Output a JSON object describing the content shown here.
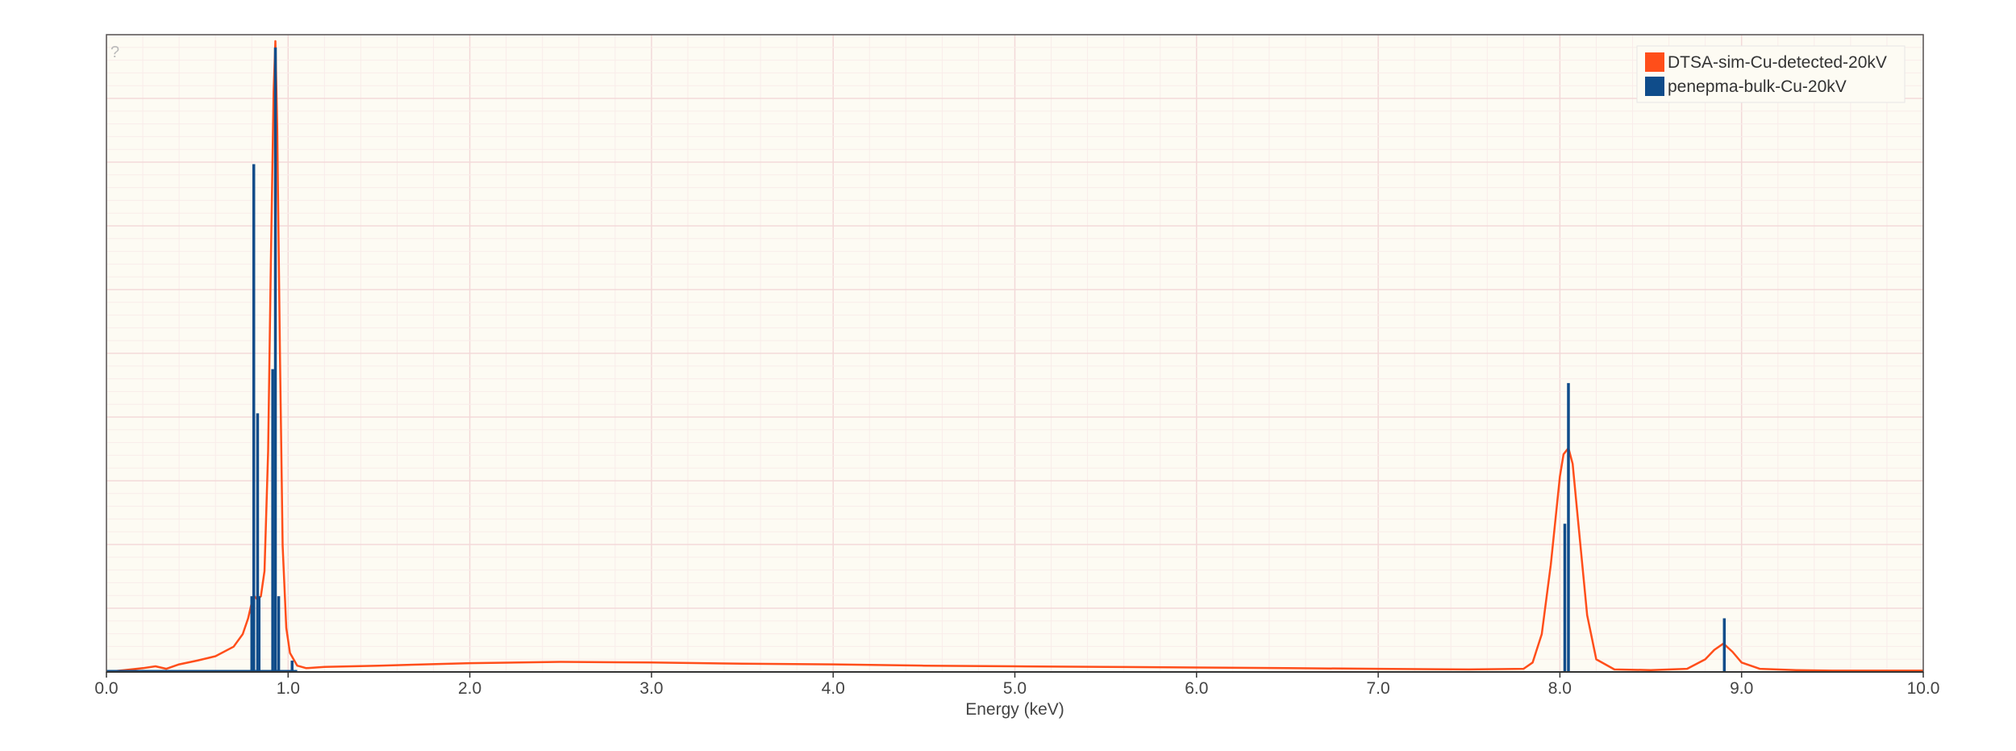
{
  "chart_data": {
    "type": "line",
    "title": "",
    "xlabel": "Energy (keV)",
    "ylabel": "",
    "xlim": [
      0,
      10
    ],
    "ylim": [
      0,
      1
    ],
    "x_ticks": [
      "0.0",
      "1.0",
      "2.0",
      "3.0",
      "4.0",
      "5.0",
      "6.0",
      "7.0",
      "8.0",
      "9.0",
      "10.0"
    ],
    "grid": true,
    "legend_position": "top-right",
    "help_mark": "?",
    "colors": {
      "plot_background": "#fdfbf3",
      "grid_major": "#f3d9d9",
      "grid_minor": "#f9ecea",
      "frame": "#555555"
    },
    "series": [
      {
        "name": "DTSA-sim-Cu-detected-20kV",
        "color": "#ff4e1a",
        "style": "line",
        "x": [
          0.0,
          0.1,
          0.2,
          0.27,
          0.33,
          0.4,
          0.5,
          0.6,
          0.7,
          0.75,
          0.78,
          0.8,
          0.815,
          0.83,
          0.85,
          0.87,
          0.89,
          0.905,
          0.92,
          0.93,
          0.94,
          0.955,
          0.97,
          0.99,
          1.01,
          1.05,
          1.1,
          1.2,
          1.5,
          2.0,
          2.5,
          3.0,
          3.5,
          4.0,
          4.5,
          5.0,
          5.5,
          6.0,
          6.5,
          7.0,
          7.5,
          7.8,
          7.85,
          7.9,
          7.95,
          8.0,
          8.02,
          8.047,
          8.07,
          8.1,
          8.15,
          8.2,
          8.3,
          8.5,
          8.7,
          8.8,
          8.85,
          8.9,
          8.95,
          9.0,
          9.1,
          9.3,
          9.5,
          10.0
        ],
        "values": [
          0.0,
          0.003,
          0.006,
          0.009,
          0.005,
          0.012,
          0.018,
          0.025,
          0.04,
          0.06,
          0.085,
          0.11,
          0.12,
          0.115,
          0.12,
          0.16,
          0.35,
          0.65,
          0.92,
          1.0,
          0.86,
          0.5,
          0.2,
          0.07,
          0.03,
          0.01,
          0.006,
          0.008,
          0.01,
          0.014,
          0.016,
          0.015,
          0.013,
          0.012,
          0.01,
          0.009,
          0.008,
          0.007,
          0.006,
          0.005,
          0.004,
          0.005,
          0.015,
          0.06,
          0.17,
          0.31,
          0.345,
          0.355,
          0.33,
          0.24,
          0.09,
          0.02,
          0.004,
          0.003,
          0.005,
          0.02,
          0.035,
          0.045,
          0.032,
          0.015,
          0.005,
          0.003,
          0.002,
          0.002
        ]
      },
      {
        "name": "penepma-bulk-Cu-20kV",
        "color": "#0f4c8a",
        "style": "stick",
        "x": [
          0.5,
          0.8,
          0.811,
          0.832,
          0.84,
          0.915,
          0.93,
          0.948,
          1.022,
          8.027,
          8.047,
          8.905
        ],
        "values": [
          0.002,
          0.12,
          0.805,
          0.41,
          0.12,
          0.48,
          0.99,
          0.12,
          0.018,
          0.235,
          0.458,
          0.085
        ]
      }
    ]
  }
}
